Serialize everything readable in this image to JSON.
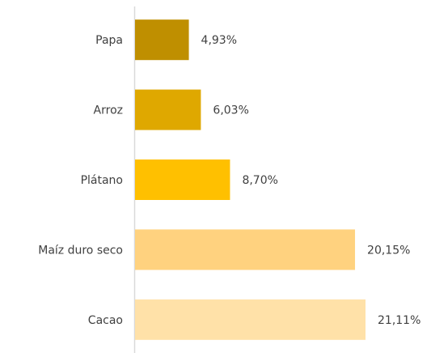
{
  "chart_data": {
    "type": "bar",
    "orientation": "horizontal",
    "categories": [
      "Papa",
      "Arroz",
      "Plátano",
      "Maíz duro seco",
      "Cacao"
    ],
    "values": [
      4.93,
      6.03,
      8.7,
      20.15,
      21.11
    ],
    "value_labels": [
      "4,93%",
      "6,03%",
      "8,70%",
      "20,15%",
      "21,11%"
    ],
    "colors": [
      "#bf8f00",
      "#dfa800",
      "#ffc000",
      "#ffd27f",
      "#ffe1a8"
    ]
  }
}
